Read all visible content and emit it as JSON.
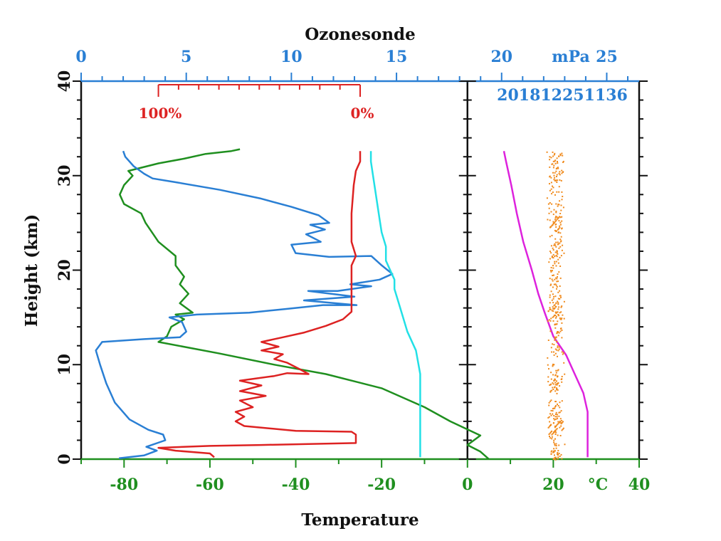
{
  "chart_data": {
    "type": "line",
    "title": "Ozonesonde",
    "xlabel": "Temperature",
    "ylabel": "Height (km)",
    "sounding_id": "201812251136",
    "colors": {
      "temperature": "#1f8f1f",
      "ozone": "#2a7fd4",
      "humidity": "#dd2222",
      "pump_temperature": "#22e0e6",
      "pressure_profile": "#dd22dd",
      "scatter_dots": "#f08a1c",
      "axis_black": "#111111"
    },
    "y_axis": {
      "range": [
        0,
        40
      ],
      "ticks": [
        0,
        10,
        20,
        30,
        40
      ],
      "tick_labels": [
        "0",
        "10",
        "20",
        "30",
        "40"
      ]
    },
    "x_axis_temperature": {
      "range": [
        -90,
        40
      ],
      "ticks": [
        -80,
        -60,
        -40,
        -20,
        0,
        20,
        40
      ],
      "tick_labels": [
        "-80",
        "-60",
        "-40",
        "-20",
        "0",
        "20",
        "40"
      ],
      "unit_label": "°C"
    },
    "x_axis_ozone": {
      "range": [
        0,
        26
      ],
      "ticks": [
        0,
        5,
        10,
        15,
        20,
        25
      ],
      "tick_labels": [
        "0",
        "5",
        "10",
        "15",
        "20",
        "25"
      ],
      "unit_label": "mPa"
    },
    "x_axis_humidity": {
      "range_temperature_units": [
        -72,
        -25
      ],
      "labels": [
        "100%",
        "0%"
      ]
    },
    "right_panel_divider_x": 0,
    "series": [
      {
        "key": "temperature",
        "axis": "temperature",
        "points": [
          [
            5,
            0
          ],
          [
            3,
            0.8
          ],
          [
            0,
            1.5
          ],
          [
            3,
            2.5
          ],
          [
            -4,
            4
          ],
          [
            -10,
            5.5
          ],
          [
            -20,
            7.5
          ],
          [
            -33,
            9
          ],
          [
            -45,
            10
          ],
          [
            -58,
            11.2
          ],
          [
            -72,
            12.4
          ],
          [
            -70,
            13
          ],
          [
            -69,
            14
          ],
          [
            -66,
            14.8
          ],
          [
            -68,
            15.3
          ],
          [
            -64,
            15.5
          ],
          [
            -67,
            16.5
          ],
          [
            -65,
            17.5
          ],
          [
            -67,
            18.5
          ],
          [
            -66,
            19.3
          ],
          [
            -68,
            20.5
          ],
          [
            -68,
            21.5
          ],
          [
            -72,
            23
          ],
          [
            -75,
            25
          ],
          [
            -76,
            26
          ],
          [
            -80,
            27
          ],
          [
            -81,
            28
          ],
          [
            -80,
            29
          ],
          [
            -78,
            30
          ],
          [
            -79,
            30.5
          ],
          [
            -72,
            31.3
          ],
          [
            -66,
            31.8
          ],
          [
            -61,
            32.3
          ],
          [
            -55,
            32.6
          ],
          [
            -53,
            32.8
          ]
        ]
      },
      {
        "key": "ozone",
        "axis": "ozone",
        "points": [
          [
            1.8,
            0.1
          ],
          [
            3.0,
            0.4
          ],
          [
            3.6,
            0.9
          ],
          [
            3.1,
            1.3
          ],
          [
            4.0,
            2.0
          ],
          [
            3.9,
            2.6
          ],
          [
            3.2,
            3.1
          ],
          [
            2.3,
            4.2
          ],
          [
            1.6,
            6
          ],
          [
            1.2,
            8
          ],
          [
            0.9,
            10
          ],
          [
            0.7,
            11.5
          ],
          [
            1.0,
            12.4
          ],
          [
            3.0,
            12.7
          ],
          [
            4.7,
            12.9
          ],
          [
            5.0,
            13.5
          ],
          [
            4.8,
            14.5
          ],
          [
            4.2,
            15.0
          ],
          [
            5.5,
            15.3
          ],
          [
            8,
            15.5
          ],
          [
            9.8,
            15.9
          ],
          [
            11.5,
            16.3
          ],
          [
            13.1,
            16.3
          ],
          [
            10.6,
            16.8
          ],
          [
            13.0,
            17.2
          ],
          [
            10.8,
            17.8
          ],
          [
            12.2,
            17.8
          ],
          [
            13.8,
            18.3
          ],
          [
            12.8,
            18.5
          ],
          [
            14.2,
            19.0
          ],
          [
            14.8,
            19.6
          ],
          [
            14.3,
            20.5
          ],
          [
            13.8,
            21.5
          ],
          [
            11.8,
            21.4
          ],
          [
            10.2,
            21.8
          ],
          [
            10.0,
            22.7
          ],
          [
            11.4,
            23.0
          ],
          [
            10.7,
            23.8
          ],
          [
            11.6,
            24.3
          ],
          [
            10.9,
            24.8
          ],
          [
            11.8,
            25.0
          ],
          [
            11.3,
            25.8
          ],
          [
            10.0,
            26.7
          ],
          [
            8.5,
            27.6
          ],
          [
            6.6,
            28.5
          ],
          [
            4.5,
            29.3
          ],
          [
            3.4,
            29.7
          ],
          [
            3.0,
            30.2
          ],
          [
            2.5,
            31.0
          ],
          [
            2.1,
            32.0
          ],
          [
            2.0,
            32.6
          ]
        ]
      },
      {
        "key": "humidity",
        "axis": "temperature",
        "points": [
          [
            -59,
            0.2
          ],
          [
            -60,
            0.6
          ],
          [
            -68,
            0.9
          ],
          [
            -72,
            1.2
          ],
          [
            -60,
            1.4
          ],
          [
            -48,
            1.5
          ],
          [
            -37,
            1.6
          ],
          [
            -26,
            1.7
          ],
          [
            -26,
            2.6
          ],
          [
            -27,
            2.9
          ],
          [
            -40,
            3.0
          ],
          [
            -52,
            3.5
          ],
          [
            -54,
            4.0
          ],
          [
            -52,
            4.5
          ],
          [
            -54,
            5.0
          ],
          [
            -50,
            5.5
          ],
          [
            -53,
            6.2
          ],
          [
            -47,
            6.7
          ],
          [
            -53,
            7.2
          ],
          [
            -48,
            7.8
          ],
          [
            -53,
            8.3
          ],
          [
            -45,
            8.8
          ],
          [
            -42,
            9.1
          ],
          [
            -37,
            9.0
          ],
          [
            -39,
            9.5
          ],
          [
            -42,
            10.2
          ],
          [
            -45,
            10.6
          ],
          [
            -43,
            11.1
          ],
          [
            -48,
            11.5
          ],
          [
            -44,
            11.9
          ],
          [
            -48,
            12.4
          ],
          [
            -43,
            12.9
          ],
          [
            -38,
            13.4
          ],
          [
            -33,
            14.1
          ],
          [
            -29,
            14.8
          ],
          [
            -27,
            15.6
          ],
          [
            -27,
            17.0
          ],
          [
            -27,
            19
          ],
          [
            -27,
            20.5
          ],
          [
            -26,
            21.5
          ],
          [
            -27,
            23
          ],
          [
            -27,
            26
          ],
          [
            -26.5,
            29
          ],
          [
            -26,
            30.5
          ],
          [
            -25,
            31.5
          ],
          [
            -25,
            32.6
          ]
        ]
      },
      {
        "key": "pump_temperature",
        "axis": "temperature",
        "points": [
          [
            -11,
            0.2
          ],
          [
            -11,
            3
          ],
          [
            -11,
            6
          ],
          [
            -11,
            9
          ],
          [
            -12,
            11.5
          ],
          [
            -14,
            13.5
          ],
          [
            -15,
            15
          ],
          [
            -16,
            16.5
          ],
          [
            -17,
            18
          ],
          [
            -17,
            19
          ],
          [
            -18,
            20
          ],
          [
            -19,
            21
          ],
          [
            -19,
            22.5
          ],
          [
            -20,
            24
          ],
          [
            -20.5,
            25.5
          ],
          [
            -21,
            27
          ],
          [
            -21.5,
            28.5
          ],
          [
            -22,
            30
          ],
          [
            -22.5,
            31.5
          ],
          [
            -22.5,
            32.6
          ]
        ]
      },
      {
        "key": "pressure_profile",
        "axis": "temperature",
        "points": [
          [
            28,
            0.2
          ],
          [
            28,
            2.5
          ],
          [
            28,
            5.0
          ],
          [
            27,
            7.0
          ],
          [
            25,
            9.0
          ],
          [
            23,
            11.0
          ],
          [
            20,
            13.0
          ],
          [
            18,
            15.5
          ],
          [
            16.5,
            17.5
          ],
          [
            15,
            20
          ],
          [
            13,
            23
          ],
          [
            11.5,
            26
          ],
          [
            10.2,
            29
          ],
          [
            9,
            31.5
          ],
          [
            8.5,
            32.6
          ]
        ]
      }
    ],
    "scatter": {
      "key": "scatter_dots",
      "axis": "temperature",
      "x_center": 20.5,
      "x_spread": 2.2,
      "y_range": [
        0,
        32.6
      ]
    }
  }
}
